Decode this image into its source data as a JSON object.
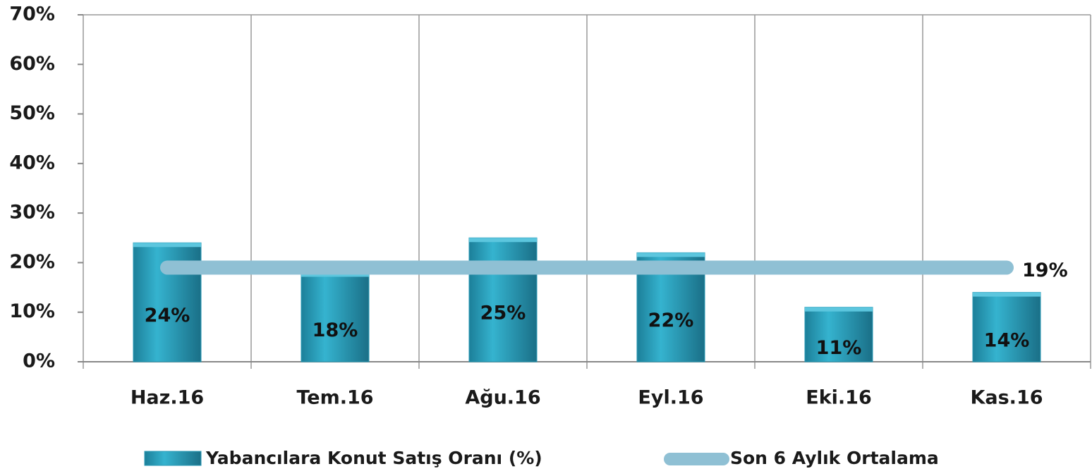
{
  "chart_data": {
    "type": "bar-line",
    "categories": [
      "Haz.16",
      "Tem.16",
      "Ağu.16",
      "Eyl.16",
      "Eki.16",
      "Kas.16"
    ],
    "series": [
      {
        "name": "Yabancılara Konut Satış Oranı (%)",
        "type": "bar",
        "color": "#2a9ab5",
        "values": [
          24,
          18,
          25,
          22,
          11,
          14
        ],
        "value_labels": [
          "24%",
          "18%",
          "25%",
          "22%",
          "11%",
          "14%"
        ]
      },
      {
        "name": "Son 6 Aylık Ortalama",
        "type": "line",
        "color": "#8fc0d4",
        "values": [
          19,
          19,
          19,
          19,
          19,
          19
        ],
        "value_labels": [
          null,
          null,
          null,
          null,
          null,
          "19%"
        ]
      }
    ],
    "ylim": [
      0,
      70
    ],
    "yticks": [
      {
        "value": 0,
        "label": "0%"
      },
      {
        "value": 10,
        "label": "10%"
      },
      {
        "value": 20,
        "label": "20%"
      },
      {
        "value": 30,
        "label": "30%"
      },
      {
        "value": 40,
        "label": "40%"
      },
      {
        "value": 50,
        "label": "50%"
      },
      {
        "value": 60,
        "label": "60%"
      },
      {
        "value": 70,
        "label": "70%"
      }
    ],
    "legend": "bottom"
  }
}
